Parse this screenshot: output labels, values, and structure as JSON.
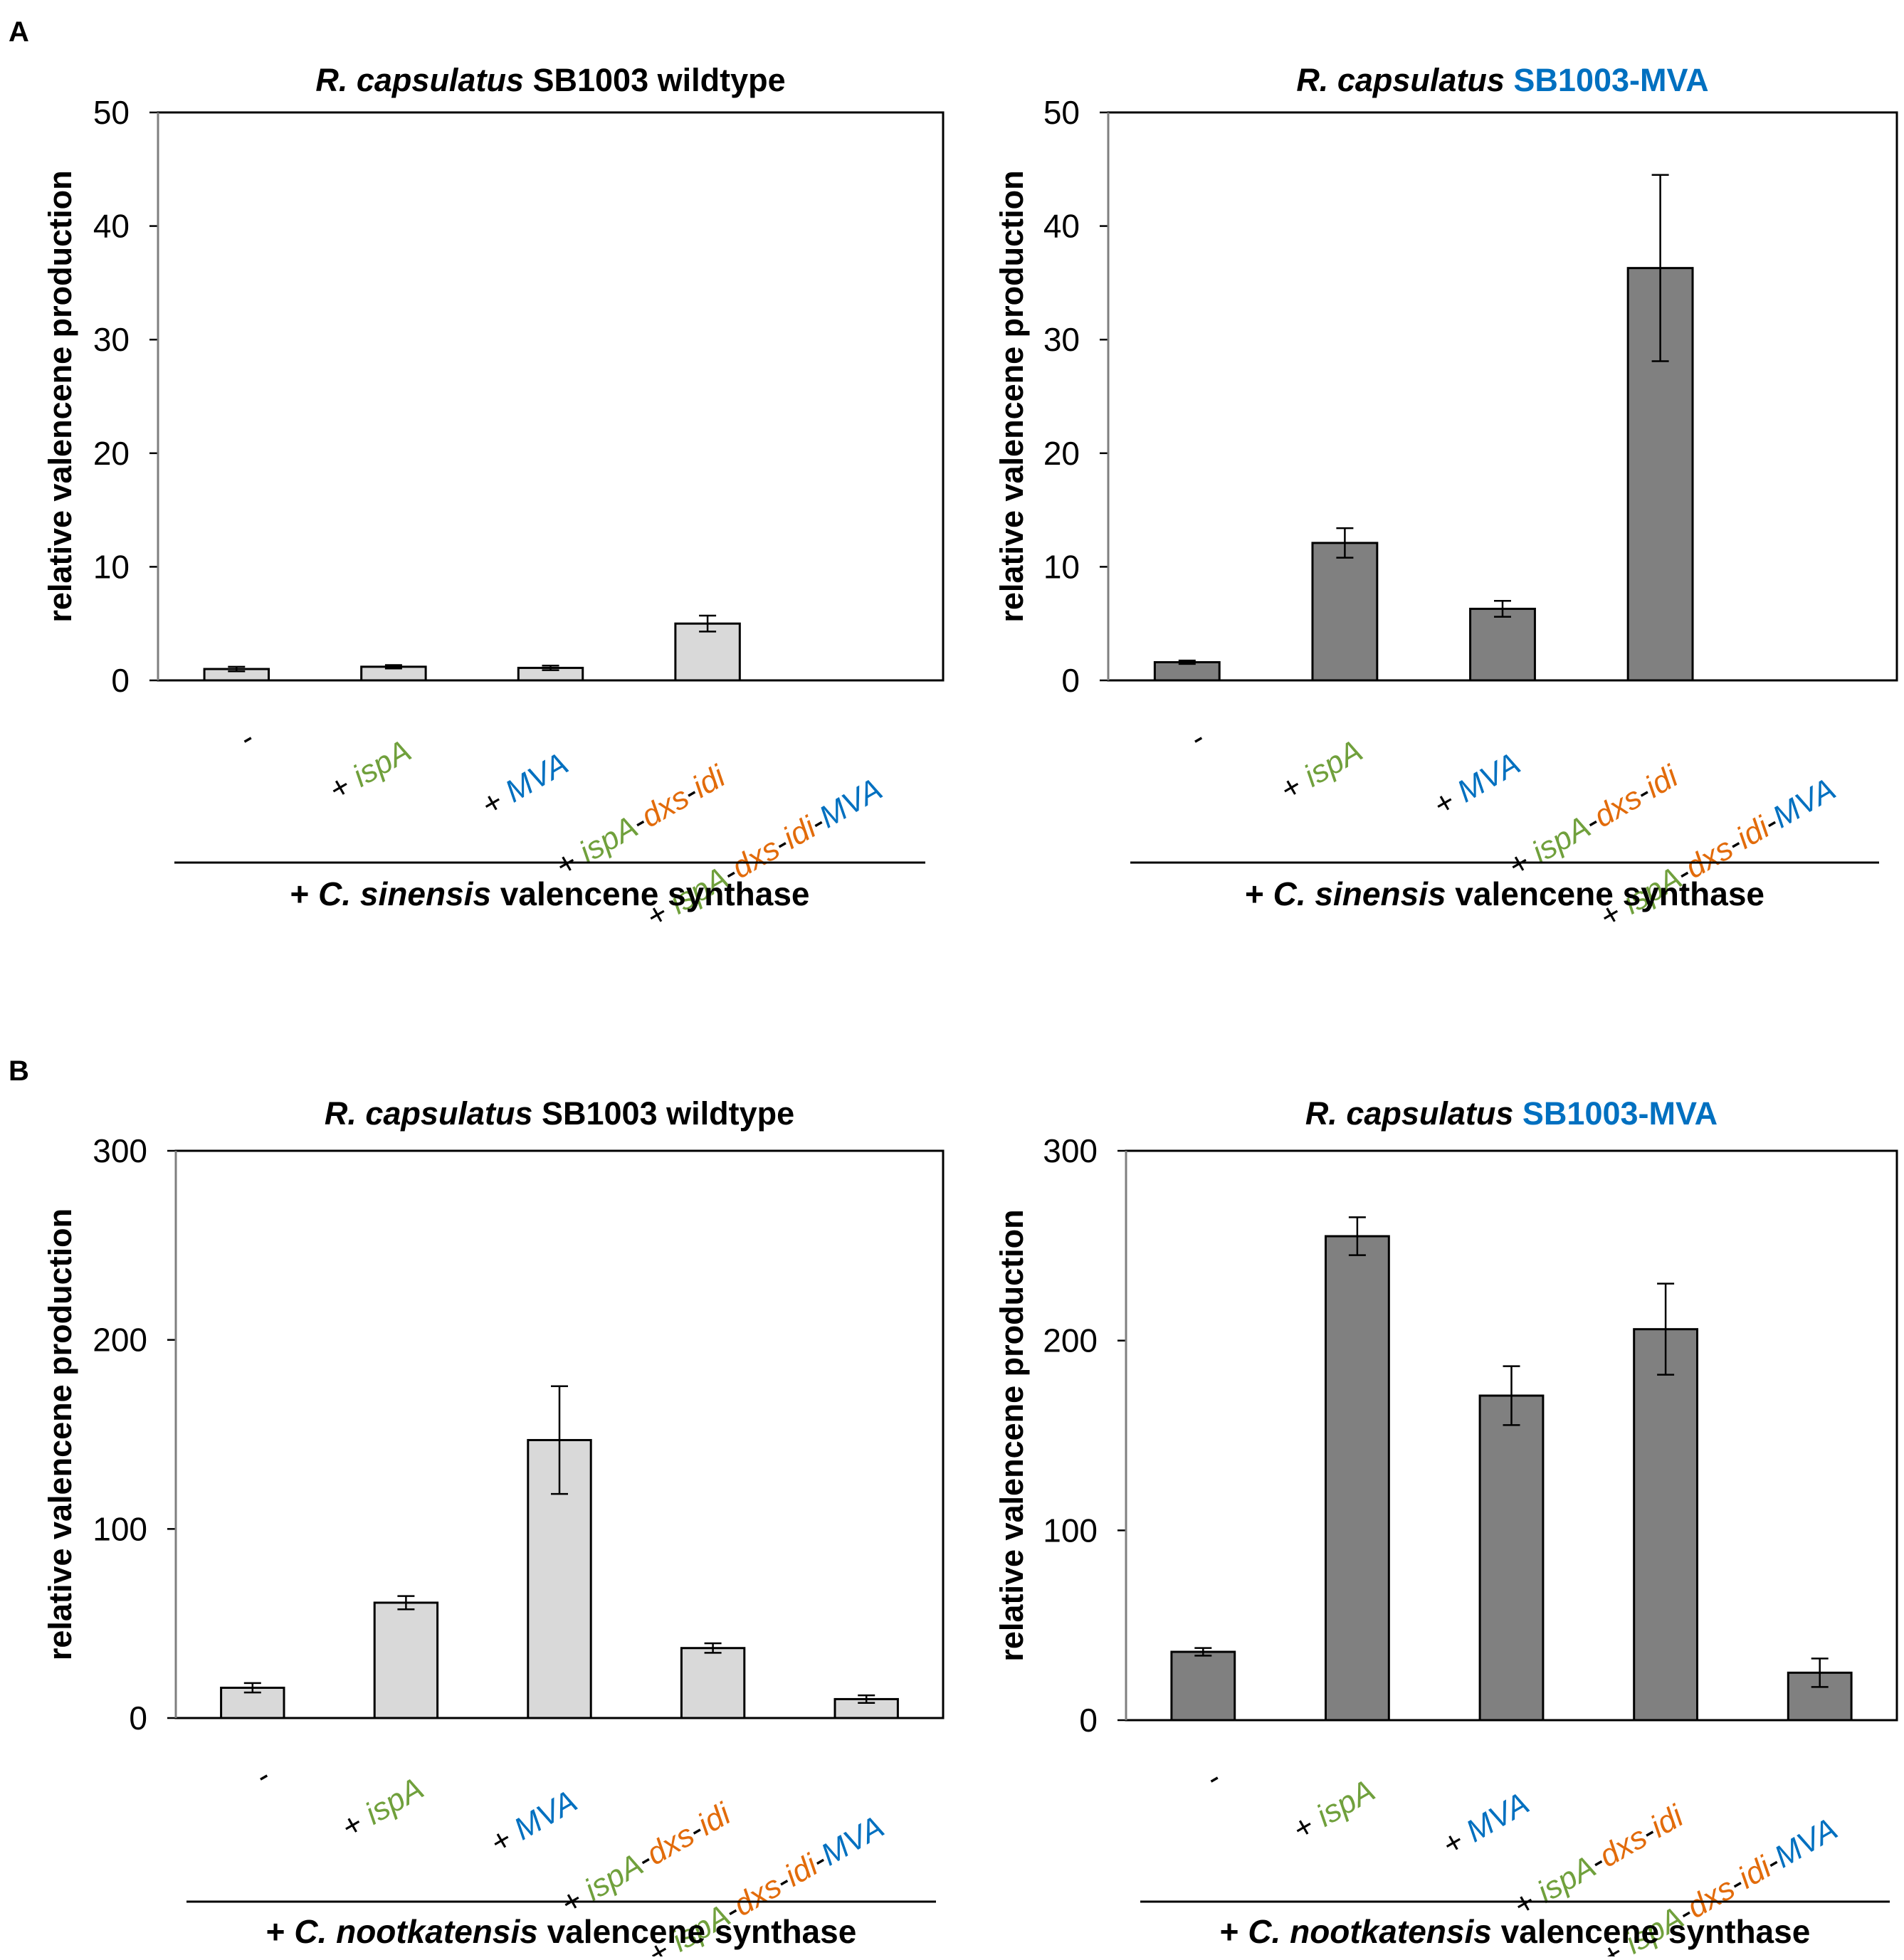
{
  "colors": {
    "wildtype_bar": "#d9d9d9",
    "mva_bar": "#808080",
    "ispA": "#70a03c",
    "dxs_idi": "#e26b0a",
    "MVA": "#0070c0",
    "strain_highlight": "#0070c0"
  },
  "panels": [
    {
      "letter": "A"
    },
    {
      "letter": "B"
    }
  ],
  "category_parts": [
    [
      {
        "t": "-",
        "c": "black",
        "i": false
      }
    ],
    [
      {
        "t": "+ ",
        "c": "black",
        "i": false
      },
      {
        "t": "ispA",
        "c": "ispA",
        "i": true
      }
    ],
    [
      {
        "t": "+ ",
        "c": "black",
        "i": false
      },
      {
        "t": "MVA",
        "c": "MVA",
        "i": true
      }
    ],
    [
      {
        "t": "+ ",
        "c": "black",
        "i": false
      },
      {
        "t": "ispA",
        "c": "ispA",
        "i": true
      },
      {
        "t": "-",
        "c": "black",
        "i": false
      },
      {
        "t": "dxs",
        "c": "dxs_idi",
        "i": true
      },
      {
        "t": "-",
        "c": "black",
        "i": false
      },
      {
        "t": "idi",
        "c": "dxs_idi",
        "i": true
      }
    ],
    [
      {
        "t": "+ ",
        "c": "black",
        "i": false
      },
      {
        "t": "ispA",
        "c": "ispA",
        "i": true
      },
      {
        "t": "-",
        "c": "black",
        "i": false
      },
      {
        "t": "dxs",
        "c": "dxs_idi",
        "i": true
      },
      {
        "t": "-",
        "c": "black",
        "i": false
      },
      {
        "t": "idi",
        "c": "dxs_idi",
        "i": true
      },
      {
        "t": "-",
        "c": "black",
        "i": false
      },
      {
        "t": "MVA",
        "c": "MVA",
        "i": true
      }
    ]
  ],
  "chart_data": [
    {
      "type": "bar",
      "title_parts": [
        {
          "t": "R. capsulatus",
          "i": true,
          "c": "black"
        },
        {
          "t": " SB1003 wildtype",
          "i": false,
          "c": "black"
        }
      ],
      "categories": [
        "-",
        "+ ispA",
        "+ MVA",
        "+ ispA-dxs-idi",
        "+ ispA-dxs-idi-MVA"
      ],
      "values": [
        1.0,
        1.2,
        1.1,
        5.0,
        0
      ],
      "errors": [
        0.2,
        0.15,
        0.2,
        0.7,
        0
      ],
      "ylabel": "relative valencene production",
      "ylim": [
        0,
        50
      ],
      "yticks": [
        0,
        10,
        20,
        30,
        40,
        50
      ],
      "bar_color": "wildtype_bar",
      "footer_parts": [
        {
          "t": "+ ",
          "i": false
        },
        {
          "t": "C. sinensis",
          "i": true
        },
        {
          "t": " valencene synthase",
          "i": false
        }
      ]
    },
    {
      "type": "bar",
      "title_parts": [
        {
          "t": "R. capsulatus",
          "i": true,
          "c": "black"
        },
        {
          "t": " SB1003-MVA",
          "i": false,
          "c": "strain_highlight"
        }
      ],
      "categories": [
        "-",
        "+ ispA",
        "+ MVA",
        "+ ispA-dxs-idi",
        "+ ispA-dxs-idi-MVA"
      ],
      "values": [
        1.6,
        12.1,
        6.3,
        36.3,
        0
      ],
      "errors": [
        0.15,
        1.3,
        0.7,
        8.2,
        0
      ],
      "ylabel": "relative valencene production",
      "ylim": [
        0,
        50
      ],
      "yticks": [
        0,
        10,
        20,
        30,
        40,
        50
      ],
      "bar_color": "mva_bar",
      "footer_parts": [
        {
          "t": "+ ",
          "i": false
        },
        {
          "t": "C. sinensis",
          "i": true
        },
        {
          "t": " valencene synthase",
          "i": false
        }
      ]
    },
    {
      "type": "bar",
      "title_parts": [
        {
          "t": "R. capsulatus",
          "i": true,
          "c": "black"
        },
        {
          "t": " SB1003 wildtype",
          "i": false,
          "c": "black"
        }
      ],
      "categories": [
        "-",
        "+ ispA",
        "+ MVA",
        "+ ispA-dxs-idi",
        "+ ispA-dxs-idi-MVA"
      ],
      "values": [
        16,
        61,
        147,
        37,
        10
      ],
      "errors": [
        2.5,
        3.5,
        28.5,
        2.5,
        2
      ],
      "ylabel": "relative valencene production",
      "ylim": [
        0,
        300
      ],
      "yticks": [
        0,
        100,
        200,
        300
      ],
      "bar_color": "wildtype_bar",
      "footer_parts": [
        {
          "t": "+ ",
          "i": false
        },
        {
          "t": "C. nootkatensis",
          "i": true
        },
        {
          "t": " valencene synthase",
          "i": false
        }
      ]
    },
    {
      "type": "bar",
      "title_parts": [
        {
          "t": "R. capsulatus",
          "i": true,
          "c": "black"
        },
        {
          "t": " SB1003-MVA",
          "i": false,
          "c": "strain_highlight"
        }
      ],
      "categories": [
        "-",
        "+ ispA",
        "+ MVA",
        "+ ispA-dxs-idi",
        "+ ispA-dxs-idi-MVA"
      ],
      "values": [
        36,
        255,
        171,
        206,
        25
      ],
      "errors": [
        2,
        10,
        15.5,
        24,
        7.5
      ],
      "ylabel": "relative valencene production",
      "ylim": [
        0,
        300
      ],
      "yticks": [
        0,
        100,
        200,
        300
      ],
      "bar_color": "mva_bar",
      "footer_parts": [
        {
          "t": "+ ",
          "i": false
        },
        {
          "t": "C. nootkatensis",
          "i": true
        },
        {
          "t": " valencene synthase",
          "i": false
        }
      ]
    }
  ]
}
